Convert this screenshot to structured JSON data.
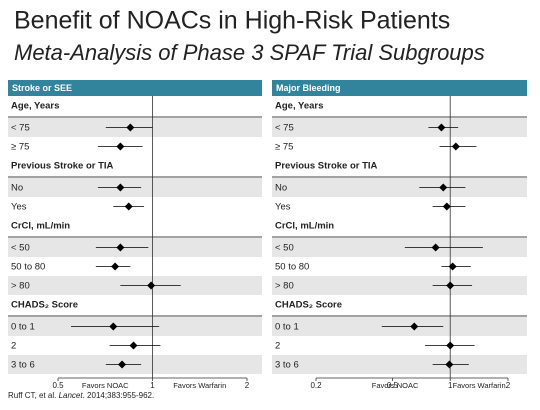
{
  "title": "Benefit of NOACs in High-Risk Patients",
  "subtitle": "Meta-Analysis of Phase 3 SPAF Trial Subgroups",
  "citation_authors": "Ruff CT, et al.",
  "citation_journal": "Lancet",
  "citation_ref": ". 2014;383:955-962.",
  "chart_data": [
    {
      "type": "forest",
      "title": "Stroke or SEE",
      "header_color": "#31849b",
      "color": "#000000",
      "log_x": true,
      "xlim": [
        0.5,
        2
      ],
      "xticks": [
        0.5,
        1,
        2
      ],
      "reference": 1,
      "xlabel_left": "Favors NOAC",
      "xlabel_right": "Favors Warfarin",
      "groups": [
        {
          "name": "Age, Years",
          "categories": [
            "< 75",
            "≥ 75"
          ],
          "values": [
            0.85,
            0.79
          ],
          "ci_low": [
            0.71,
            0.67
          ],
          "ci_high": [
            1.0,
            0.93
          ]
        },
        {
          "name": "Previous Stroke or TIA",
          "categories": [
            "No",
            "Yes"
          ],
          "values": [
            0.79,
            0.84
          ],
          "ci_low": [
            0.67,
            0.75
          ],
          "ci_high": [
            0.92,
            0.94
          ]
        },
        {
          "name": "CrCl, mL/min",
          "categories": [
            "< 50",
            "50 to 80",
            "> 80"
          ],
          "values": [
            0.79,
            0.76,
            0.99
          ],
          "ci_low": [
            0.66,
            0.66,
            0.79
          ],
          "ci_high": [
            0.97,
            0.85,
            1.23
          ]
        },
        {
          "name": "CHADS₂ Score",
          "categories": [
            "0 to 1",
            "2",
            "3 to 6"
          ],
          "values": [
            0.75,
            0.87,
            0.8
          ],
          "ci_low": [
            0.55,
            0.73,
            0.71
          ],
          "ci_high": [
            1.05,
            1.06,
            0.92
          ]
        }
      ]
    },
    {
      "type": "forest",
      "title": "Major Bleeding",
      "header_color": "#31849b",
      "color": "#000000",
      "log_x": true,
      "xlim": [
        0.2,
        2
      ],
      "xticks": [
        0.2,
        0.5,
        1,
        2
      ],
      "reference": 1,
      "xlabel_left": "Favors NOAC",
      "xlabel_right": "Favors Warfarin",
      "groups": [
        {
          "name": "Age, Years",
          "categories": [
            "< 75",
            "≥ 75"
          ],
          "values": [
            0.9,
            1.07
          ],
          "ci_low": [
            0.77,
            0.88
          ],
          "ci_high": [
            1.1,
            1.37
          ]
        },
        {
          "name": "Previous Stroke or TIA",
          "categories": [
            "No",
            "Yes"
          ],
          "values": [
            0.92,
            0.96
          ],
          "ci_low": [
            0.69,
            0.81
          ],
          "ci_high": [
            1.2,
            1.2
          ]
        },
        {
          "name": "CrCl, mL/min",
          "categories": [
            "< 50",
            "50 to 80",
            "> 80"
          ],
          "values": [
            0.84,
            1.03,
            1.0
          ],
          "ci_low": [
            0.58,
            0.9,
            0.81
          ],
          "ci_high": [
            1.48,
            1.28,
            1.3
          ]
        },
        {
          "name": "CHADS₂ Score",
          "categories": [
            "0 to 1",
            "2",
            "3 to 6"
          ],
          "values": [
            0.65,
            1.0,
            0.99
          ],
          "ci_low": [
            0.44,
            0.74,
            0.81
          ],
          "ci_high": [
            0.92,
            1.34,
            1.25
          ]
        }
      ]
    }
  ]
}
